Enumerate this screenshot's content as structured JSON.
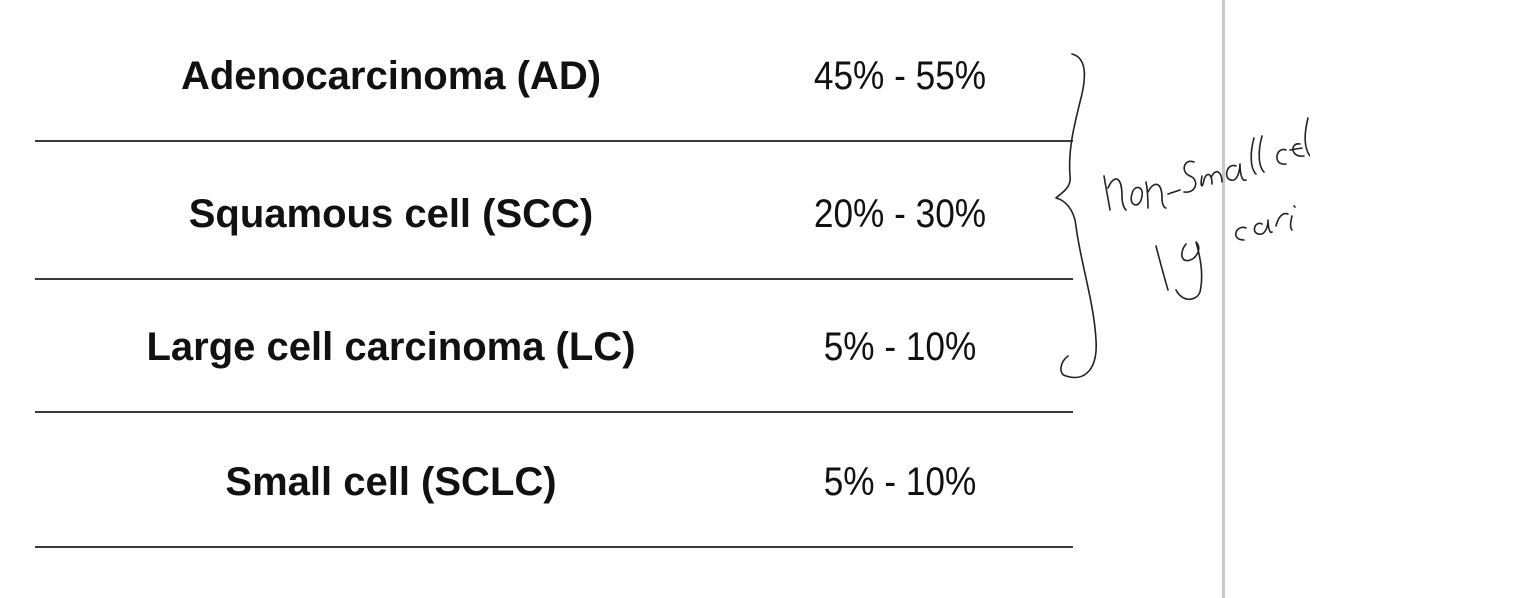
{
  "table": {
    "rows": [
      {
        "type": "Adenocarcinoma (AD)",
        "percent": "45% - 55%"
      },
      {
        "type": "Squamous cell (SCC)",
        "percent": "20% - 30%"
      },
      {
        "type": "Large cell carcinoma (LC)",
        "percent": "5% - 10%"
      },
      {
        "type": "Small cell (SCLC)",
        "percent": "5% - 10%"
      }
    ]
  },
  "annotation": {
    "handwritten_text": "non-small cell lg carcinoma"
  },
  "colors": {
    "text": "#111111",
    "divider": "#3a3a3a",
    "margin_line": "#c9c9c9",
    "ink": "#222222"
  }
}
